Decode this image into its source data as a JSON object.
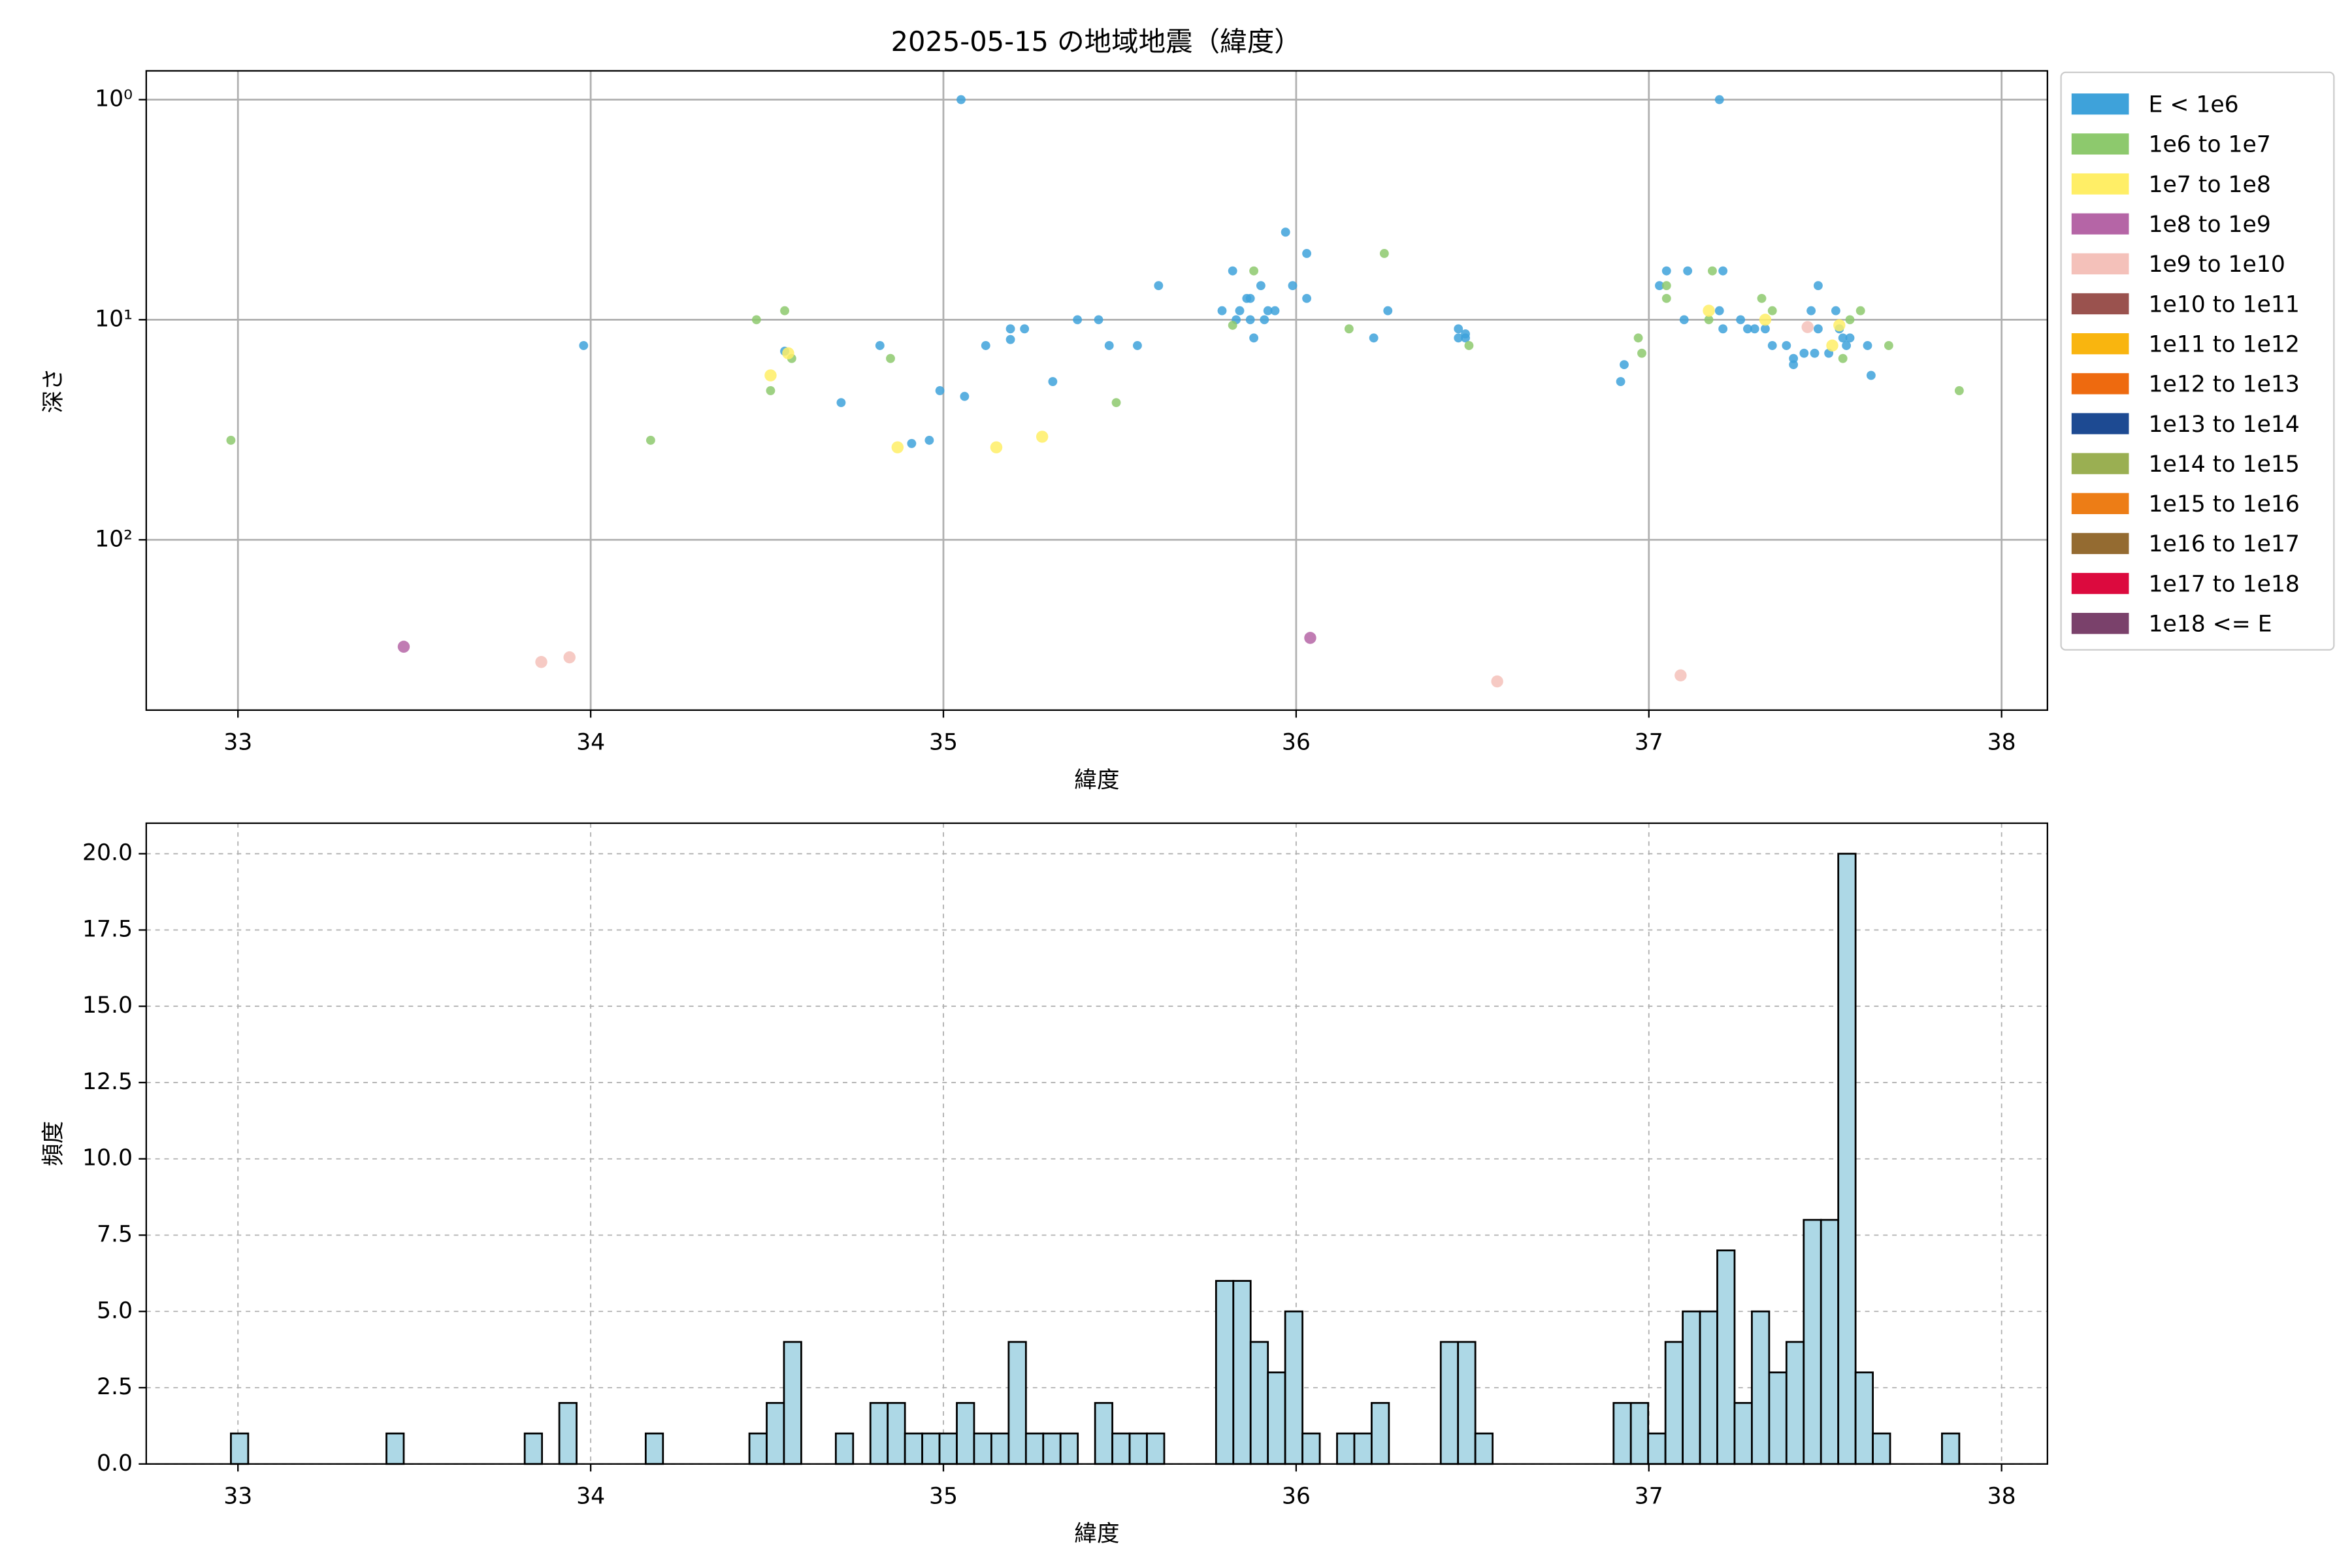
{
  "chart_data": [
    {
      "type": "scatter",
      "title": "2025-05-15 の地域地震（緯度）",
      "xlabel": "緯度",
      "ylabel": "深さ",
      "xlim": [
        32.74,
        38.13
      ],
      "ylim": [
        0.74,
        594
      ],
      "log_y": true,
      "invert_y": true,
      "xticks": [
        33,
        34,
        35,
        36,
        37,
        38
      ],
      "yticks": [
        {
          "value": 1,
          "label": "10⁰"
        },
        {
          "value": 10,
          "label": "10¹"
        },
        {
          "value": 100,
          "label": "10²"
        }
      ],
      "grid": true,
      "legend": "outside right",
      "series": [
        {
          "name": "E < 1e6",
          "color": "#3ea2da",
          "x": [
            35.05,
            37.2,
            33.98,
            34.55,
            34.71,
            34.82,
            34.91,
            34.96,
            34.99,
            35.06,
            35.12,
            35.19,
            35.19,
            35.23,
            35.31,
            35.38,
            35.44,
            35.47,
            35.55,
            35.61,
            35.79,
            35.82,
            35.83,
            35.84,
            35.86,
            35.87,
            35.87,
            35.88,
            35.9,
            35.91,
            35.92,
            35.94,
            35.97,
            35.99,
            36.03,
            36.03,
            36.22,
            36.26,
            36.46,
            36.46,
            36.48,
            36.48,
            36.92,
            36.93,
            37.03,
            37.05,
            37.11,
            37.1,
            37.21,
            37.2,
            37.21,
            37.26,
            37.28,
            37.3,
            37.33,
            37.35,
            37.39,
            37.41,
            37.41,
            37.44,
            37.46,
            37.48,
            37.47,
            37.51,
            37.53,
            37.54,
            37.55,
            37.56,
            37.57,
            37.62,
            37.63,
            37.48
          ],
          "values": [
            1,
            1,
            13.1,
            13.9,
            23.8,
            13.1,
            36.5,
            35.3,
            21,
            22.3,
            13.1,
            12.3,
            11,
            11,
            19.1,
            10,
            10,
            13.1,
            13.1,
            7,
            9.1,
            6,
            10,
            9.1,
            8,
            10,
            8,
            12.1,
            7,
            10,
            9.1,
            9.1,
            4,
            7,
            5,
            8,
            12.1,
            9.1,
            11,
            12.1,
            12.1,
            11.6,
            19.1,
            16,
            7,
            6,
            6,
            10,
            6,
            9.1,
            11,
            10,
            11,
            11,
            11,
            13.1,
            13.1,
            16,
            15,
            14.2,
            9.1,
            7,
            14.2,
            14.2,
            9.1,
            11,
            12.1,
            13.1,
            12.1,
            13.1,
            17.9,
            11
          ]
        },
        {
          "name": "1e6 to 1e7",
          "color": "#8dc96d",
          "x": [
            32.98,
            34.17,
            34.47,
            34.51,
            34.55,
            34.57,
            34.85,
            35.49,
            35.82,
            35.88,
            36.15,
            36.25,
            36.49,
            36.97,
            36.98,
            37.05,
            37.05,
            37.17,
            37.18,
            37.32,
            37.35,
            37.55,
            37.57,
            37.6,
            37.68,
            37.88
          ],
          "values": [
            35.3,
            35.3,
            10,
            21,
            9.1,
            15,
            15,
            23.8,
            10.6,
            6,
            11,
            5,
            13.1,
            12.1,
            14.2,
            7,
            8,
            10,
            6,
            8,
            9.1,
            15,
            10,
            9.1,
            13.1,
            21
          ]
        },
        {
          "name": "1e7 to 1e8",
          "color": "#ffee66",
          "x": [
            34.51,
            34.56,
            34.87,
            35.15,
            35.28,
            37.17,
            37.33,
            37.52,
            37.54
          ],
          "values": [
            17.9,
            14.2,
            38,
            38,
            34,
            9.1,
            10,
            13.1,
            10.6
          ]
        },
        {
          "name": "1e8 to 1e9",
          "color": "#b565a6",
          "x": [
            33.47,
            36.04
          ],
          "values": [
            306,
            279
          ]
        },
        {
          "name": "1e9 to 1e10",
          "color": "#f4c1ba",
          "x": [
            33.86,
            33.94,
            36.57,
            37.09,
            37.45
          ],
          "values": [
            359,
            342,
            440,
            413,
            10.8
          ]
        },
        {
          "name": "1e10 to 1e11",
          "color": "#9a524e",
          "x": [],
          "values": []
        },
        {
          "name": "1e11 to 1e12",
          "color": "#f9b50f",
          "x": [],
          "values": []
        },
        {
          "name": "1e12 to 1e13",
          "color": "#ee6a0f",
          "x": [],
          "values": []
        },
        {
          "name": "1e13 to 1e14",
          "color": "#1d4a92",
          "x": [],
          "values": []
        },
        {
          "name": "1e14 to 1e15",
          "color": "#9aaf52",
          "x": [],
          "values": []
        },
        {
          "name": "1e15 to 1e16",
          "color": "#ed7d16",
          "x": [],
          "values": []
        },
        {
          "name": "1e16 to 1e17",
          "color": "#946b31",
          "x": [],
          "values": []
        },
        {
          "name": "1e17 to 1e18",
          "color": "#dc0a3e",
          "x": [],
          "values": []
        },
        {
          "name": "1e18 <= E",
          "color": "#7a416b",
          "x": [],
          "values": []
        }
      ]
    },
    {
      "type": "histogram",
      "xlabel": "緯度",
      "ylabel": "頻度",
      "color": "#add8e6",
      "edgecolor": "#000000",
      "xlim": [
        32.74,
        38.13
      ],
      "ylim": [
        0,
        21
      ],
      "xticks": [
        33,
        34,
        35,
        36,
        37,
        38
      ],
      "yticks": [
        {
          "value": 0,
          "label": "0.0"
        },
        {
          "value": 2.5,
          "label": "2.5"
        },
        {
          "value": 5,
          "label": "5.0"
        },
        {
          "value": 7.5,
          "label": "7.5"
        },
        {
          "value": 10,
          "label": "10.0"
        },
        {
          "value": 12.5,
          "label": "12.5"
        },
        {
          "value": 15,
          "label": "15.0"
        },
        {
          "value": 17.5,
          "label": "17.5"
        },
        {
          "value": 20,
          "label": "20.0"
        }
      ],
      "grid": "dashed",
      "bins": [
        32.98,
        33.029,
        33.078,
        33.127,
        33.176,
        33.225,
        33.274,
        33.323,
        33.372,
        33.421,
        33.47,
        33.519,
        33.568,
        33.617,
        33.666,
        33.715,
        33.764,
        33.813,
        33.862,
        33.911,
        33.96,
        34.009,
        34.058,
        34.107,
        34.156,
        34.205,
        34.254,
        34.303,
        34.352,
        34.401,
        34.45,
        34.499,
        34.548,
        34.597,
        34.646,
        34.695,
        34.744,
        34.793,
        34.842,
        34.891,
        34.94,
        34.989,
        35.038,
        35.087,
        35.136,
        35.185,
        35.234,
        35.283,
        35.332,
        35.381,
        35.43,
        35.479,
        35.528,
        35.577,
        35.626,
        35.675,
        35.724,
        35.773,
        35.822,
        35.871,
        35.92,
        35.969,
        36.018,
        36.067,
        36.116,
        36.165,
        36.214,
        36.263,
        36.312,
        36.361,
        36.41,
        36.459,
        36.508,
        36.557,
        36.606,
        36.655,
        36.704,
        36.753,
        36.802,
        36.851,
        36.9,
        36.949,
        36.998,
        37.047,
        37.096,
        37.145,
        37.194,
        37.243,
        37.292,
        37.341,
        37.39,
        37.439,
        37.488,
        37.537,
        37.586,
        37.635,
        37.684,
        37.733,
        37.782,
        37.831,
        37.88
      ],
      "values": [
        1,
        0,
        0,
        0,
        0,
        0,
        0,
        0,
        0,
        1,
        0,
        0,
        0,
        0,
        0,
        0,
        0,
        1,
        0,
        2,
        0,
        0,
        0,
        0,
        1,
        0,
        0,
        0,
        0,
        0,
        1,
        2,
        4,
        0,
        0,
        1,
        0,
        2,
        2,
        1,
        1,
        1,
        2,
        1,
        1,
        4,
        1,
        1,
        1,
        0,
        2,
        1,
        1,
        1,
        0,
        0,
        0,
        6,
        6,
        4,
        3,
        5,
        1,
        0,
        1,
        1,
        2,
        0,
        0,
        0,
        4,
        4,
        1,
        0,
        0,
        0,
        0,
        0,
        0,
        0,
        2,
        2,
        1,
        4,
        5,
        5,
        7,
        2,
        5,
        3,
        4,
        8,
        8,
        20,
        3,
        1,
        0,
        0,
        0,
        1
      ]
    }
  ]
}
